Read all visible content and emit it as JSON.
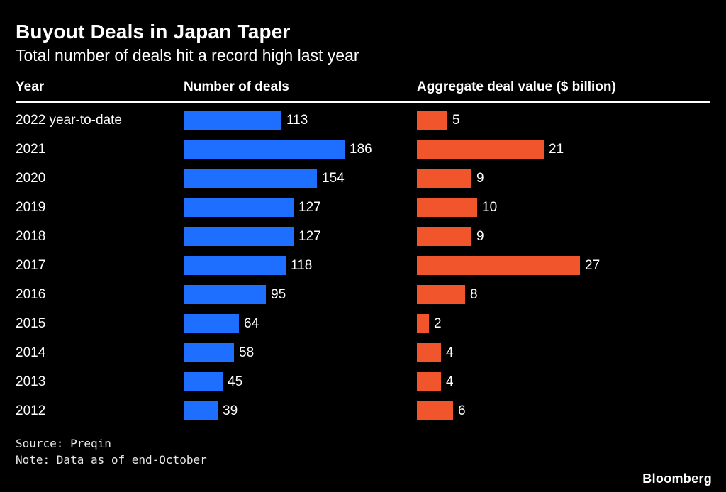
{
  "header": {
    "title": "Buyout Deals in Japan Taper",
    "subtitle": "Total number of deals hit a record high last year"
  },
  "columns": {
    "year": "Year",
    "deals": "Number of deals",
    "value": "Aggregate deal value ($ billion)"
  },
  "footer": {
    "source": "Source: Preqin",
    "note": "Note: Data as of end-October",
    "brand": "Bloomberg"
  },
  "colors": {
    "background": "#000000",
    "text": "#ffffff",
    "deals_bar": "#1e6eff",
    "value_bar": "#f1552c"
  },
  "chart_data": {
    "type": "bar",
    "orientation": "horizontal",
    "title": "Buyout Deals in Japan Taper",
    "subtitle": "Total number of deals hit a record high last year",
    "categories": [
      "2022 year-to-date",
      "2021",
      "2020",
      "2019",
      "2018",
      "2017",
      "2016",
      "2015",
      "2014",
      "2013",
      "2012"
    ],
    "series": [
      {
        "name": "Number of deals",
        "color": "#1e6eff",
        "values": [
          113,
          186,
          154,
          127,
          127,
          118,
          95,
          64,
          58,
          45,
          39
        ],
        "xlim": [
          0,
          190
        ]
      },
      {
        "name": "Aggregate deal value ($ billion)",
        "color": "#f1552c",
        "values": [
          5,
          21,
          9,
          10,
          9,
          27,
          8,
          2,
          4,
          4,
          6
        ],
        "xlim": [
          0,
          28
        ]
      }
    ],
    "grid": false,
    "legend": "none (column headers act as series labels)",
    "source": "Source: Preqin",
    "note": "Note: Data as of end-October"
  }
}
